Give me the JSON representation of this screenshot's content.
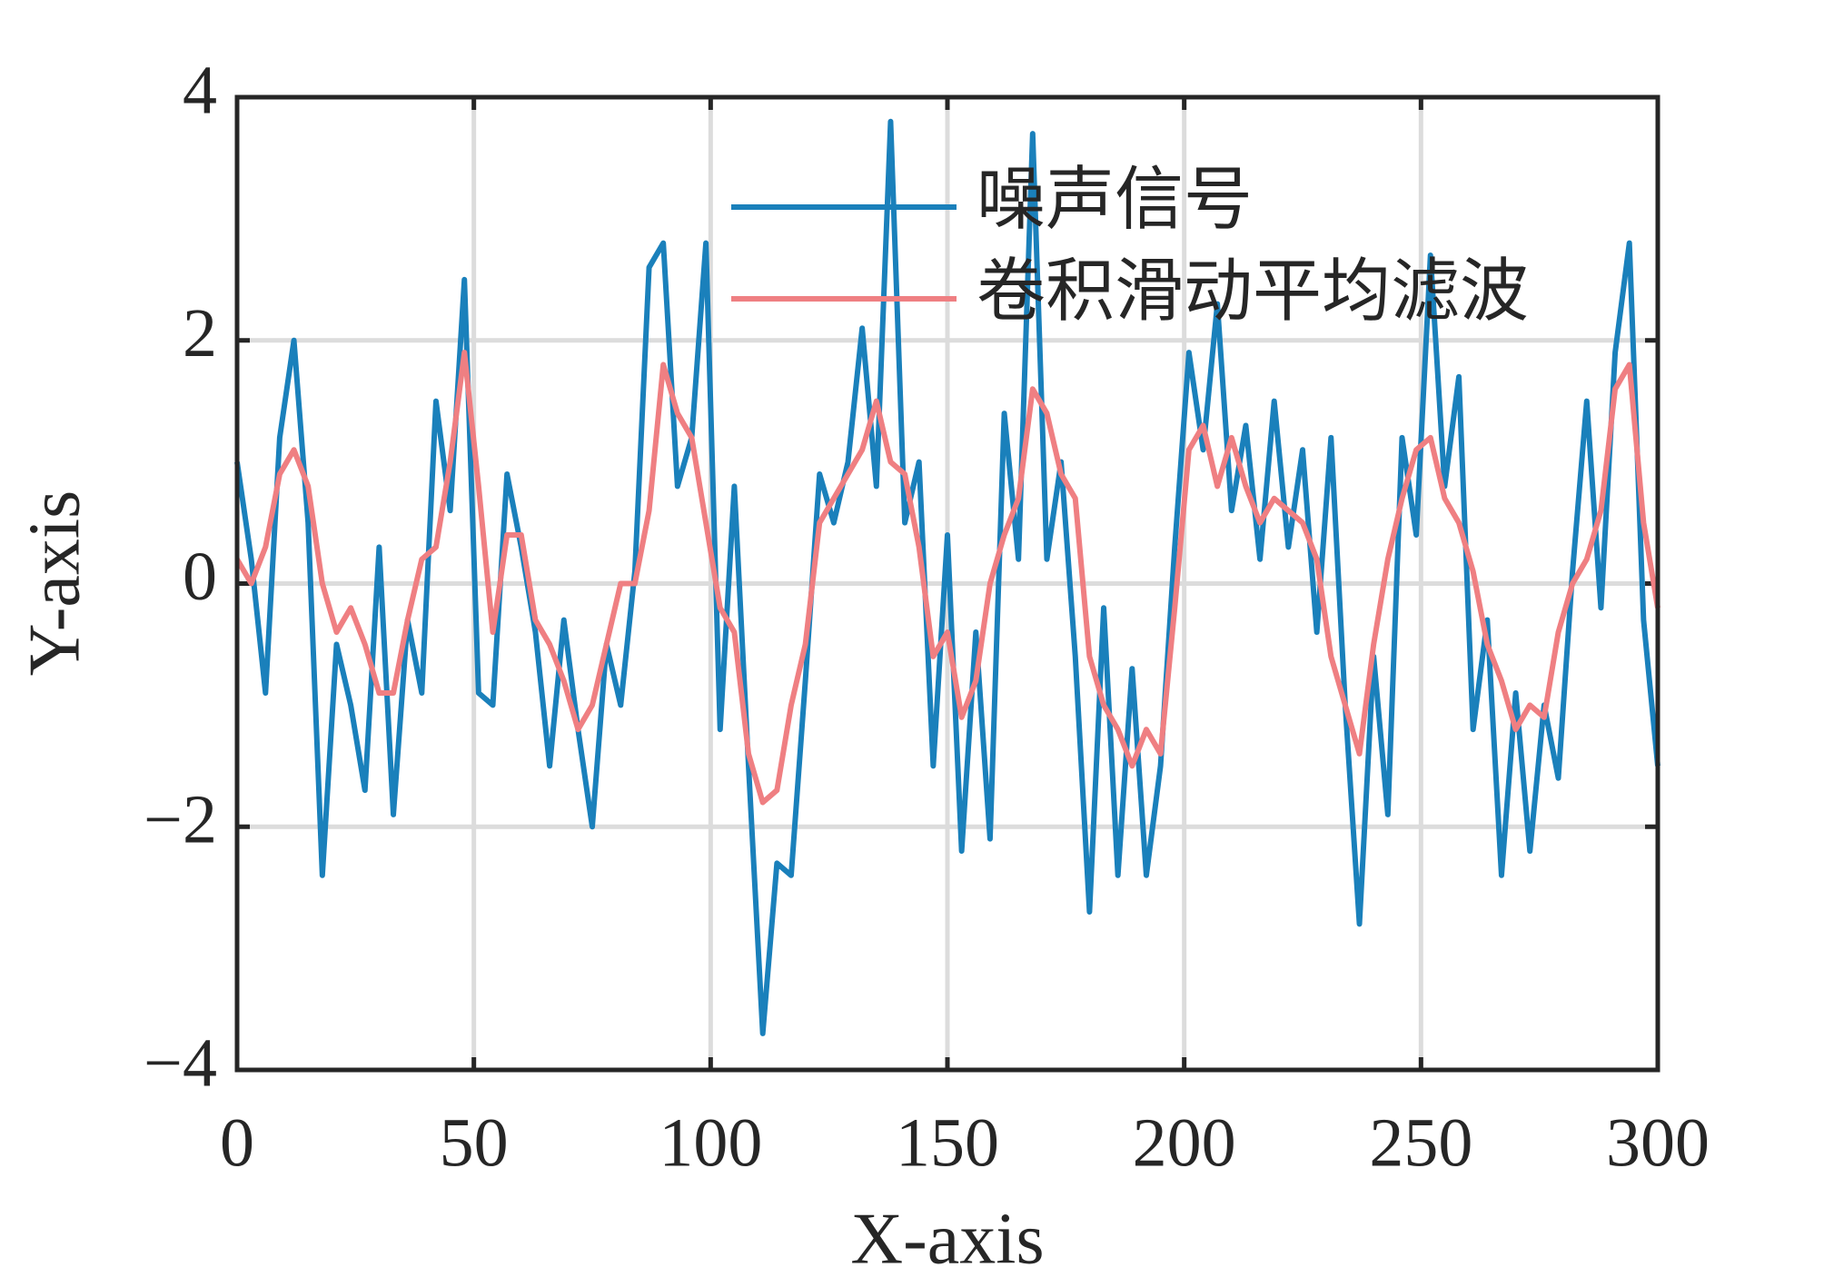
{
  "chart_data": {
    "type": "line",
    "xlabel": "X-axis",
    "ylabel": "Y-axis",
    "x": [
      0,
      3,
      6,
      9,
      12,
      15,
      18,
      21,
      24,
      27,
      30,
      33,
      36,
      39,
      42,
      45,
      48,
      51,
      54,
      57,
      60,
      63,
      66,
      69,
      72,
      75,
      78,
      81,
      84,
      87,
      90,
      93,
      96,
      99,
      102,
      105,
      108,
      111,
      114,
      117,
      120,
      123,
      126,
      129,
      132,
      135,
      138,
      141,
      144,
      147,
      150,
      153,
      156,
      159,
      162,
      165,
      168,
      171,
      174,
      177,
      180,
      183,
      186,
      189,
      192,
      195,
      198,
      201,
      204,
      207,
      210,
      213,
      216,
      219,
      222,
      225,
      228,
      231,
      234,
      237,
      240,
      243,
      246,
      249,
      252,
      255,
      258,
      261,
      264,
      267,
      270,
      273,
      276,
      279,
      282,
      285,
      288,
      291,
      294,
      297,
      300
    ],
    "series": [
      {
        "name": "噪声信号",
        "color": "#1a80bb",
        "values": [
          1.0,
          0.2,
          -0.9,
          1.2,
          2.0,
          0.5,
          -2.4,
          -0.5,
          -1.0,
          -1.7,
          0.3,
          -1.9,
          -0.3,
          -0.9,
          1.5,
          0.6,
          2.5,
          -0.9,
          -1.0,
          0.9,
          0.3,
          -0.4,
          -1.5,
          -0.3,
          -1.2,
          -2.0,
          -0.5,
          -1.0,
          0.1,
          2.6,
          2.8,
          0.8,
          1.2,
          2.8,
          -1.2,
          0.8,
          -1.5,
          -3.7,
          -2.3,
          -2.4,
          -0.8,
          0.9,
          0.5,
          1.0,
          2.1,
          0.8,
          3.8,
          0.5,
          1.0,
          -1.5,
          0.4,
          -2.2,
          -0.4,
          -2.1,
          1.4,
          0.2,
          3.7,
          0.2,
          1.0,
          -0.6,
          -2.7,
          -0.2,
          -2.4,
          -0.7,
          -2.4,
          -1.5,
          0.3,
          1.9,
          1.1,
          2.3,
          0.6,
          1.3,
          0.2,
          1.5,
          0.3,
          1.1,
          -0.4,
          1.2,
          -1.0,
          -2.8,
          -0.6,
          -1.9,
          1.2,
          0.4,
          2.7,
          0.8,
          1.7,
          -1.2,
          -0.3,
          -2.4,
          -0.9,
          -2.2,
          -1.0,
          -1.6,
          0.1,
          1.5,
          -0.2,
          1.9,
          2.8,
          -0.3,
          -1.5
        ]
      },
      {
        "name": "卷积滑动平均滤波",
        "color": "#ef7f82",
        "values": [
          0.2,
          0,
          0.3,
          0.9,
          1.1,
          0.8,
          0,
          -0.4,
          -0.2,
          -0.5,
          -0.9,
          -0.9,
          -0.3,
          0.2,
          0.3,
          1.0,
          1.9,
          0.8,
          -0.4,
          0.4,
          0.4,
          -0.3,
          -0.5,
          -0.8,
          -1.2,
          -1.0,
          -0.5,
          0,
          0,
          0.6,
          1.8,
          1.4,
          1.2,
          0.5,
          -0.2,
          -0.4,
          -1.4,
          -1.8,
          -1.7,
          -1.0,
          -0.5,
          0.5,
          0.7,
          0.9,
          1.1,
          1.5,
          1.0,
          0.9,
          0.3,
          -0.6,
          -0.4,
          -1.1,
          -0.8,
          0,
          0.4,
          0.7,
          1.6,
          1.4,
          0.9,
          0.7,
          -0.6,
          -1.0,
          -1.2,
          -1.5,
          -1.2,
          -1.4,
          -0.2,
          1.1,
          1.3,
          0.8,
          1.2,
          0.8,
          0.5,
          0.7,
          0.6,
          0.5,
          0.2,
          -0.6,
          -1.0,
          -1.4,
          -0.5,
          0.2,
          0.7,
          1.1,
          1.2,
          0.7,
          0.5,
          0.1,
          -0.5,
          -0.8,
          -1.2,
          -1.0,
          -1.1,
          -0.4,
          0,
          0.2,
          0.6,
          1.6,
          1.8,
          0.5,
          -0.2
        ]
      }
    ],
    "xlim": [
      0,
      300
    ],
    "xticks": [
      0,
      50,
      100,
      150,
      200,
      250,
      300
    ],
    "ylim": [
      -4,
      4
    ],
    "yticks": [
      {
        "value": -4,
        "label": "−4"
      },
      {
        "value": -2,
        "label": "−2"
      },
      0,
      2,
      4
    ],
    "grid": true,
    "legend": "top"
  }
}
